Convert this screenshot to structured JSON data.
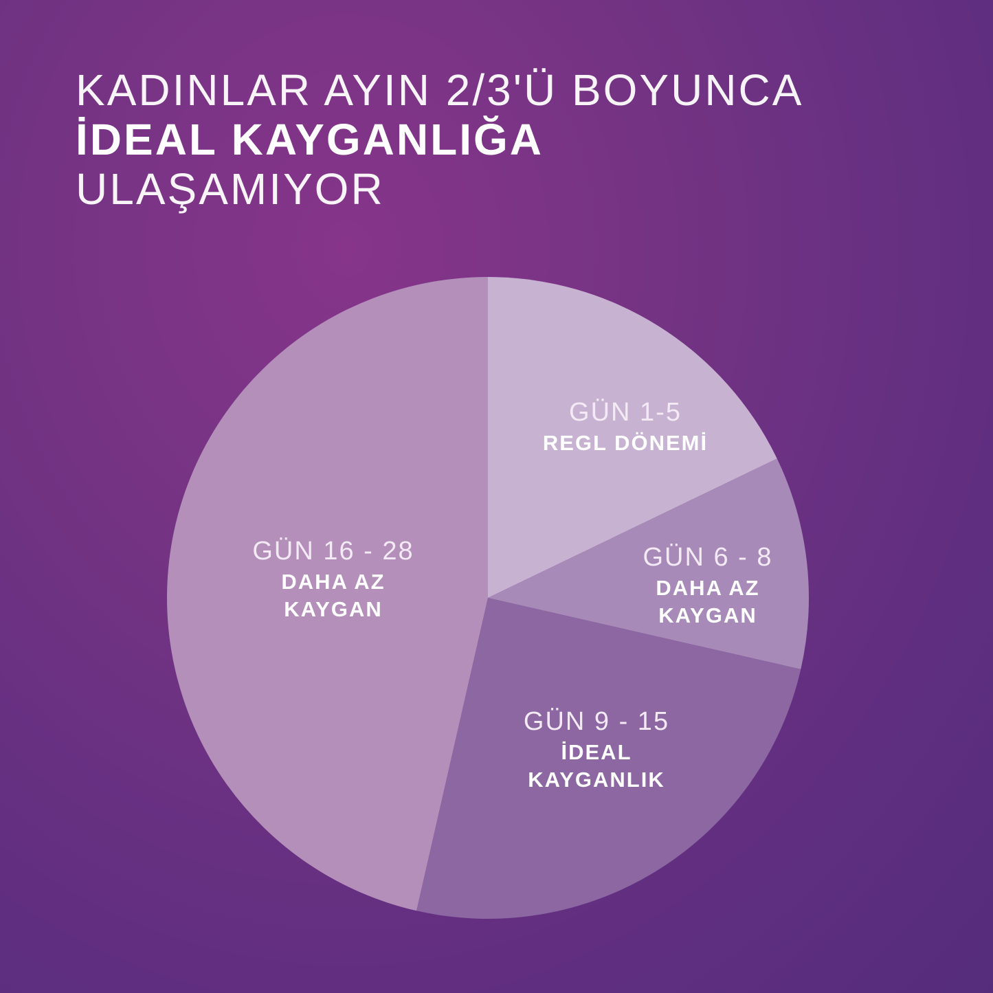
{
  "header": {
    "line1": "KADINLAR AYIN 2/3'Ü BOYUNCA",
    "line2": "İDEAL KAYGANLIĞA",
    "line3": "ULAŞAMIYOR"
  },
  "chart_data": {
    "type": "pie",
    "unit": "days",
    "start": "top, clockwise",
    "slices": [
      {
        "label": "GÜN 1-5",
        "desc": [
          "REGL DÖNEMİ"
        ],
        "value": 5,
        "color": "#c8b2d2"
      },
      {
        "label": "GÜN 6 - 8",
        "desc": [
          "DAHA AZ",
          "KAYGAN"
        ],
        "value": 3,
        "color": "#a88ab8"
      },
      {
        "label": "GÜN 9 - 15",
        "desc": [
          "İDEAL",
          "KAYGANLIK"
        ],
        "value": 7,
        "color": "#8c67a2"
      },
      {
        "label": "GÜN 16 - 28",
        "desc": [
          "DAHA AZ",
          "KAYGAN"
        ],
        "value": 13,
        "color": "#b38fba"
      }
    ]
  }
}
